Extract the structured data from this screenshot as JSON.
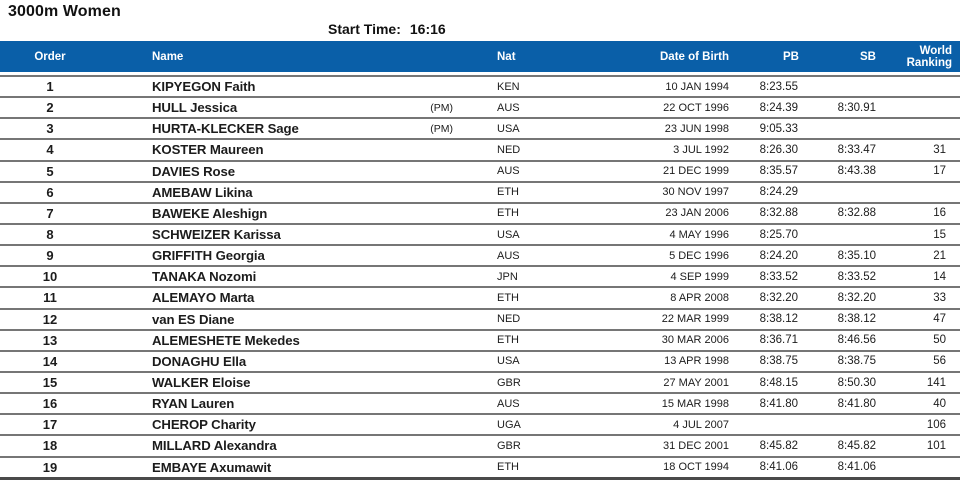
{
  "page": {
    "title": "3000m Women",
    "start_time_label": "Start Time:",
    "start_time_value": "16:16"
  },
  "colors": {
    "header_bg": "#0a5fa8",
    "header_text": "#ffffff",
    "row_separator": "#767676",
    "table_bottom_border": "#4a4a4a"
  },
  "table": {
    "columns": [
      "Order",
      "Name",
      "Nat",
      "Date of Birth",
      "PB",
      "SB",
      "World Ranking"
    ],
    "rows": [
      {
        "order": "1",
        "name": "KIPYEGON Faith",
        "tag": "",
        "nat": "KEN",
        "dob": "10 JAN 1994",
        "pb": "8:23.55",
        "sb": "",
        "wr": ""
      },
      {
        "order": "2",
        "name": "HULL Jessica",
        "tag": "(PM)",
        "nat": "AUS",
        "dob": "22 OCT 1996",
        "pb": "8:24.39",
        "sb": "8:30.91",
        "wr": ""
      },
      {
        "order": "3",
        "name": "HURTA-KLECKER Sage",
        "tag": "(PM)",
        "nat": "USA",
        "dob": "23 JUN 1998",
        "pb": "9:05.33",
        "sb": "",
        "wr": ""
      },
      {
        "order": "4",
        "name": "KOSTER Maureen",
        "tag": "",
        "nat": "NED",
        "dob": "3 JUL 1992",
        "pb": "8:26.30",
        "sb": "8:33.47",
        "wr": "31"
      },
      {
        "order": "5",
        "name": "DAVIES Rose",
        "tag": "",
        "nat": "AUS",
        "dob": "21 DEC 1999",
        "pb": "8:35.57",
        "sb": "8:43.38",
        "wr": "17"
      },
      {
        "order": "6",
        "name": "AMEBAW Likina",
        "tag": "",
        "nat": "ETH",
        "dob": "30 NOV 1997",
        "pb": "8:24.29",
        "sb": "",
        "wr": ""
      },
      {
        "order": "7",
        "name": "BAWEKE Aleshign",
        "tag": "",
        "nat": "ETH",
        "dob": "23 JAN 2006",
        "pb": "8:32.88",
        "sb": "8:32.88",
        "wr": "16"
      },
      {
        "order": "8",
        "name": "SCHWEIZER Karissa",
        "tag": "",
        "nat": "USA",
        "dob": "4 MAY 1996",
        "pb": "8:25.70",
        "sb": "",
        "wr": "15"
      },
      {
        "order": "9",
        "name": "GRIFFITH Georgia",
        "tag": "",
        "nat": "AUS",
        "dob": "5 DEC 1996",
        "pb": "8:24.20",
        "sb": "8:35.10",
        "wr": "21"
      },
      {
        "order": "10",
        "name": "TANAKA Nozomi",
        "tag": "",
        "nat": "JPN",
        "dob": "4 SEP 1999",
        "pb": "8:33.52",
        "sb": "8:33.52",
        "wr": "14"
      },
      {
        "order": "11",
        "name": "ALEMAYO Marta",
        "tag": "",
        "nat": "ETH",
        "dob": "8 APR 2008",
        "pb": "8:32.20",
        "sb": "8:32.20",
        "wr": "33"
      },
      {
        "order": "12",
        "name": "van ES Diane",
        "tag": "",
        "nat": "NED",
        "dob": "22 MAR 1999",
        "pb": "8:38.12",
        "sb": "8:38.12",
        "wr": "47"
      },
      {
        "order": "13",
        "name": "ALEMESHETE Mekedes",
        "tag": "",
        "nat": "ETH",
        "dob": "30 MAR 2006",
        "pb": "8:36.71",
        "sb": "8:46.56",
        "wr": "50"
      },
      {
        "order": "14",
        "name": "DONAGHU Ella",
        "tag": "",
        "nat": "USA",
        "dob": "13 APR 1998",
        "pb": "8:38.75",
        "sb": "8:38.75",
        "wr": "56"
      },
      {
        "order": "15",
        "name": "WALKER Eloise",
        "tag": "",
        "nat": "GBR",
        "dob": "27 MAY 2001",
        "pb": "8:48.15",
        "sb": "8:50.30",
        "wr": "141"
      },
      {
        "order": "16",
        "name": "RYAN Lauren",
        "tag": "",
        "nat": "AUS",
        "dob": "15 MAR 1998",
        "pb": "8:41.80",
        "sb": "8:41.80",
        "wr": "40"
      },
      {
        "order": "17",
        "name": "CHEROP Charity",
        "tag": "",
        "nat": "UGA",
        "dob": "4 JUL 2007",
        "pb": "",
        "sb": "",
        "wr": "106"
      },
      {
        "order": "18",
        "name": "MILLARD Alexandra",
        "tag": "",
        "nat": "GBR",
        "dob": "31 DEC 2001",
        "pb": "8:45.82",
        "sb": "8:45.82",
        "wr": "101"
      },
      {
        "order": "19",
        "name": "EMBAYE Axumawit",
        "tag": "",
        "nat": "ETH",
        "dob": "18 OCT 1994",
        "pb": "8:41.06",
        "sb": "8:41.06",
        "wr": ""
      }
    ]
  }
}
